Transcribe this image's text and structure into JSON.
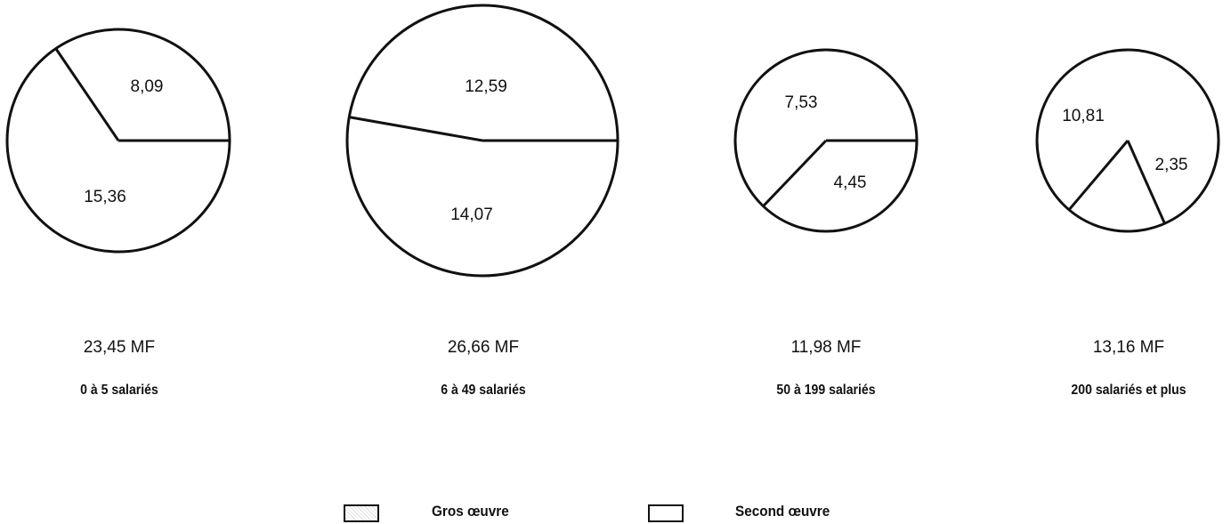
{
  "chart_data": [
    {
      "type": "pie",
      "total_label": "23,45 MF",
      "category_label": "0 à 5 salariés",
      "slices": [
        {
          "name": "Gros œuvre",
          "value": 8.09,
          "label": "8,09"
        },
        {
          "name": "Second œuvre",
          "value": 15.36,
          "label": "15,36"
        }
      ]
    },
    {
      "type": "pie",
      "total_label": "26,66 MF",
      "category_label": "6 à 49 salariés",
      "slices": [
        {
          "name": "Gros œuvre",
          "value": 12.59,
          "label": "12,59"
        },
        {
          "name": "Second œuvre",
          "value": 14.07,
          "label": "14,07"
        }
      ]
    },
    {
      "type": "pie",
      "total_label": "11,98 MF",
      "category_label": "50 à 199 salariés",
      "slices": [
        {
          "name": "Gros œuvre",
          "value": 7.53,
          "label": "7,53"
        },
        {
          "name": "Second œuvre",
          "value": 4.45,
          "label": "4,45"
        }
      ]
    },
    {
      "type": "pie",
      "total_label": "13,16 MF",
      "category_label": "200 salariés et plus",
      "slices": [
        {
          "name": "Gros œuvre",
          "value": 10.81,
          "label": "10,81"
        },
        {
          "name": "Second œuvre",
          "value": 2.35,
          "label": "2,35"
        }
      ]
    }
  ],
  "legend": [
    {
      "label": "Gros œuvre",
      "key": "gros"
    },
    {
      "label": "Second œuvre",
      "key": "second"
    }
  ]
}
